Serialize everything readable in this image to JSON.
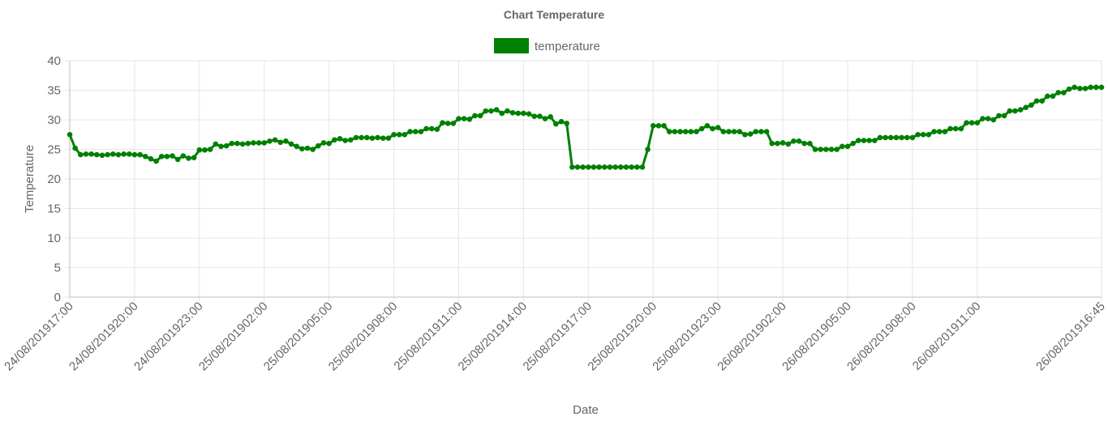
{
  "chart_data": {
    "type": "line",
    "title": "Chart Temperature",
    "xlabel": "Date",
    "ylabel": "Temperature",
    "ylim": [
      0,
      40
    ],
    "y_ticks": [
      0,
      5,
      10,
      15,
      20,
      25,
      30,
      35,
      40
    ],
    "grid": true,
    "legend_position": "top-center",
    "colors": {
      "series": "#008000",
      "grid": "#e6e6e6",
      "text": "#666666"
    },
    "x_tick_labels": [
      "24/08/201917:00",
      "24/08/201920:00",
      "24/08/201923:00",
      "25/08/201902:00",
      "25/08/201905:00",
      "25/08/201908:00",
      "25/08/201911:00",
      "25/08/201914:00",
      "25/08/201917:00",
      "25/08/201920:00",
      "25/08/201923:00",
      "26/08/201902:00",
      "26/08/201905:00",
      "26/08/201908:00",
      "26/08/201911:00",
      "26/08/201916:45"
    ],
    "x_tick_positions": [
      0,
      3,
      6,
      9,
      12,
      15,
      18,
      21,
      24,
      27,
      30,
      33,
      36,
      39,
      42,
      47.75
    ],
    "x_domain": [
      0,
      47.75
    ],
    "series": [
      {
        "name": "temperature",
        "points": [
          [
            0.0,
            27.5
          ],
          [
            0.25,
            25.2
          ],
          [
            0.5,
            24.1
          ],
          [
            0.75,
            24.2
          ],
          [
            1.0,
            24.2
          ],
          [
            1.25,
            24.1
          ],
          [
            1.5,
            24.0
          ],
          [
            1.75,
            24.1
          ],
          [
            2.0,
            24.2
          ],
          [
            2.25,
            24.1
          ],
          [
            2.5,
            24.2
          ],
          [
            2.75,
            24.2
          ],
          [
            3.0,
            24.1
          ],
          [
            3.25,
            24.1
          ],
          [
            3.5,
            23.8
          ],
          [
            3.75,
            23.4
          ],
          [
            4.0,
            23.0
          ],
          [
            4.25,
            23.8
          ],
          [
            4.5,
            23.8
          ],
          [
            4.75,
            23.9
          ],
          [
            5.0,
            23.3
          ],
          [
            5.25,
            23.9
          ],
          [
            5.5,
            23.5
          ],
          [
            5.75,
            23.6
          ],
          [
            6.0,
            24.9
          ],
          [
            6.25,
            24.9
          ],
          [
            6.5,
            25.0
          ],
          [
            6.75,
            25.9
          ],
          [
            7.0,
            25.5
          ],
          [
            7.25,
            25.6
          ],
          [
            7.5,
            26.0
          ],
          [
            7.75,
            26.0
          ],
          [
            8.0,
            25.9
          ],
          [
            8.25,
            26.0
          ],
          [
            8.5,
            26.1
          ],
          [
            8.75,
            26.1
          ],
          [
            9.0,
            26.1
          ],
          [
            9.25,
            26.4
          ],
          [
            9.5,
            26.6
          ],
          [
            9.75,
            26.2
          ],
          [
            10.0,
            26.4
          ],
          [
            10.25,
            25.9
          ],
          [
            10.5,
            25.5
          ],
          [
            10.75,
            25.1
          ],
          [
            11.0,
            25.2
          ],
          [
            11.25,
            25.0
          ],
          [
            11.5,
            25.6
          ],
          [
            11.75,
            26.1
          ],
          [
            12.0,
            26.0
          ],
          [
            12.25,
            26.6
          ],
          [
            12.5,
            26.8
          ],
          [
            12.75,
            26.5
          ],
          [
            13.0,
            26.6
          ],
          [
            13.25,
            27.0
          ],
          [
            13.5,
            27.0
          ],
          [
            13.75,
            27.0
          ],
          [
            14.0,
            26.9
          ],
          [
            14.25,
            27.0
          ],
          [
            14.5,
            26.9
          ],
          [
            14.75,
            26.9
          ],
          [
            15.0,
            27.5
          ],
          [
            15.25,
            27.5
          ],
          [
            15.5,
            27.5
          ],
          [
            15.75,
            28.0
          ],
          [
            16.0,
            28.0
          ],
          [
            16.25,
            28.0
          ],
          [
            16.5,
            28.5
          ],
          [
            16.75,
            28.5
          ],
          [
            17.0,
            28.4
          ],
          [
            17.25,
            29.5
          ],
          [
            17.5,
            29.4
          ],
          [
            17.75,
            29.4
          ],
          [
            18.0,
            30.2
          ],
          [
            18.25,
            30.2
          ],
          [
            18.5,
            30.1
          ],
          [
            18.75,
            30.7
          ],
          [
            19.0,
            30.7
          ],
          [
            19.25,
            31.5
          ],
          [
            19.5,
            31.5
          ],
          [
            19.75,
            31.7
          ],
          [
            20.0,
            31.1
          ],
          [
            20.25,
            31.5
          ],
          [
            20.5,
            31.2
          ],
          [
            20.75,
            31.1
          ],
          [
            21.0,
            31.1
          ],
          [
            21.25,
            31.0
          ],
          [
            21.5,
            30.6
          ],
          [
            21.75,
            30.6
          ],
          [
            22.0,
            30.2
          ],
          [
            22.25,
            30.5
          ],
          [
            22.5,
            29.3
          ],
          [
            22.75,
            29.7
          ],
          [
            23.0,
            29.4
          ],
          [
            23.25,
            22.0
          ],
          [
            23.5,
            22.0
          ],
          [
            23.75,
            22.0
          ],
          [
            24.0,
            22.0
          ],
          [
            24.25,
            22.0
          ],
          [
            24.5,
            22.0
          ],
          [
            24.75,
            22.0
          ],
          [
            25.0,
            22.0
          ],
          [
            25.25,
            22.0
          ],
          [
            25.5,
            22.0
          ],
          [
            25.75,
            22.0
          ],
          [
            26.0,
            22.0
          ],
          [
            26.25,
            22.0
          ],
          [
            26.5,
            22.0
          ],
          [
            26.75,
            25.0
          ],
          [
            27.0,
            29.0
          ],
          [
            27.25,
            29.0
          ],
          [
            27.5,
            29.0
          ],
          [
            27.75,
            28.0
          ],
          [
            28.0,
            28.0
          ],
          [
            28.25,
            28.0
          ],
          [
            28.5,
            28.0
          ],
          [
            28.75,
            28.0
          ],
          [
            29.0,
            28.0
          ],
          [
            29.25,
            28.5
          ],
          [
            29.5,
            29.0
          ],
          [
            29.75,
            28.5
          ],
          [
            30.0,
            28.7
          ],
          [
            30.25,
            28.0
          ],
          [
            30.5,
            28.0
          ],
          [
            30.75,
            28.0
          ],
          [
            31.0,
            28.0
          ],
          [
            31.25,
            27.5
          ],
          [
            31.5,
            27.6
          ],
          [
            31.75,
            28.0
          ],
          [
            32.0,
            28.0
          ],
          [
            32.25,
            28.0
          ],
          [
            32.5,
            26.0
          ],
          [
            32.75,
            26.0
          ],
          [
            33.0,
            26.1
          ],
          [
            33.25,
            25.9
          ],
          [
            33.5,
            26.4
          ],
          [
            33.75,
            26.4
          ],
          [
            34.0,
            26.0
          ],
          [
            34.25,
            26.0
          ],
          [
            34.5,
            25.0
          ],
          [
            34.75,
            25.0
          ],
          [
            35.0,
            25.0
          ],
          [
            35.25,
            25.0
          ],
          [
            35.5,
            25.0
          ],
          [
            35.75,
            25.5
          ],
          [
            36.0,
            25.5
          ],
          [
            36.25,
            26.0
          ],
          [
            36.5,
            26.5
          ],
          [
            36.75,
            26.5
          ],
          [
            37.0,
            26.5
          ],
          [
            37.25,
            26.5
          ],
          [
            37.5,
            27.0
          ],
          [
            37.75,
            27.0
          ],
          [
            38.0,
            27.0
          ],
          [
            38.25,
            27.0
          ],
          [
            38.5,
            27.0
          ],
          [
            38.75,
            27.0
          ],
          [
            39.0,
            27.0
          ],
          [
            39.25,
            27.5
          ],
          [
            39.5,
            27.5
          ],
          [
            39.75,
            27.5
          ],
          [
            40.0,
            28.0
          ],
          [
            40.25,
            28.0
          ],
          [
            40.5,
            28.0
          ],
          [
            40.75,
            28.5
          ],
          [
            41.0,
            28.5
          ],
          [
            41.25,
            28.5
          ],
          [
            41.5,
            29.5
          ],
          [
            41.75,
            29.5
          ],
          [
            42.0,
            29.5
          ],
          [
            42.25,
            30.2
          ],
          [
            42.5,
            30.2
          ],
          [
            42.75,
            30.0
          ],
          [
            43.0,
            30.7
          ],
          [
            43.25,
            30.7
          ],
          [
            43.5,
            31.5
          ],
          [
            43.75,
            31.5
          ],
          [
            44.0,
            31.7
          ],
          [
            44.25,
            32.1
          ],
          [
            44.5,
            32.5
          ],
          [
            44.75,
            33.2
          ],
          [
            45.0,
            33.2
          ],
          [
            45.25,
            34.0
          ],
          [
            45.5,
            34.0
          ],
          [
            45.75,
            34.6
          ],
          [
            46.0,
            34.6
          ],
          [
            46.25,
            35.2
          ],
          [
            46.5,
            35.5
          ],
          [
            46.75,
            35.3
          ],
          [
            47.0,
            35.3
          ],
          [
            47.25,
            35.5
          ],
          [
            47.5,
            35.5
          ],
          [
            47.75,
            35.5
          ]
        ]
      }
    ]
  }
}
